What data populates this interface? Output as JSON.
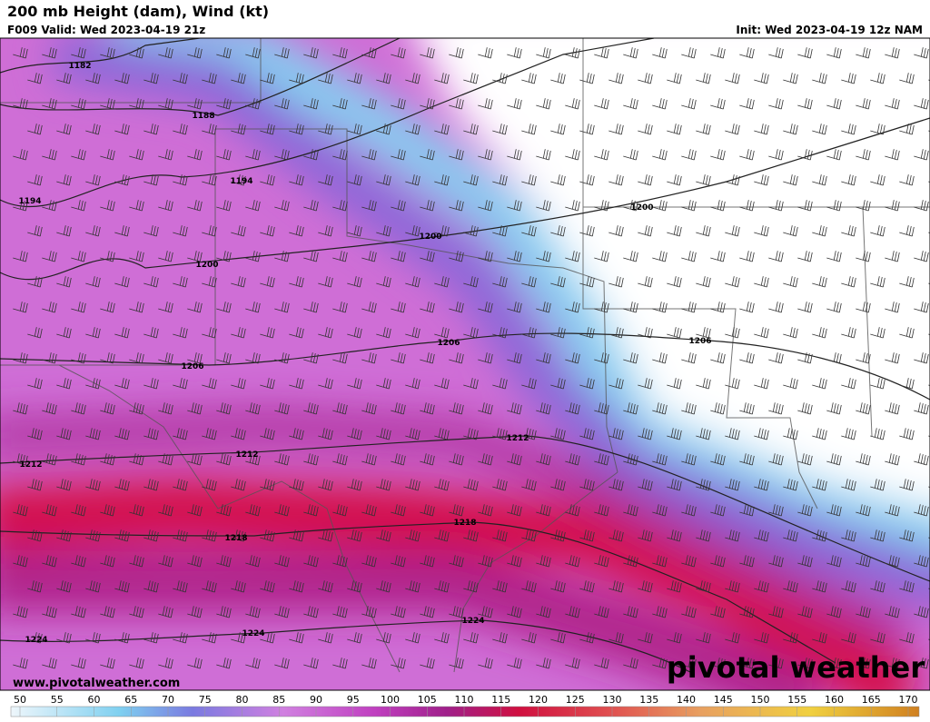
{
  "header": {
    "title": "200 mb Height (dam), Wind (kt)",
    "valid": "F009 Valid: Wed 2023-04-19 21z",
    "init": "Init: Wed 2023-04-19 12z NAM"
  },
  "contour_labels": [
    "1182",
    "1188",
    "1194",
    "1194",
    "1200",
    "1200",
    "1200",
    "1206",
    "1206",
    "1206",
    "1212",
    "1212",
    "1212",
    "1218",
    "1218",
    "1224",
    "1224",
    "1224"
  ],
  "footer": {
    "website": "www.pivotalweather.com",
    "logo": "pivotal weather"
  },
  "colorbar": {
    "ticks": [
      50,
      55,
      60,
      65,
      70,
      75,
      80,
      85,
      90,
      95,
      100,
      105,
      110,
      115,
      120,
      125,
      130,
      135,
      140,
      145,
      150,
      155,
      160,
      165,
      170
    ]
  }
}
